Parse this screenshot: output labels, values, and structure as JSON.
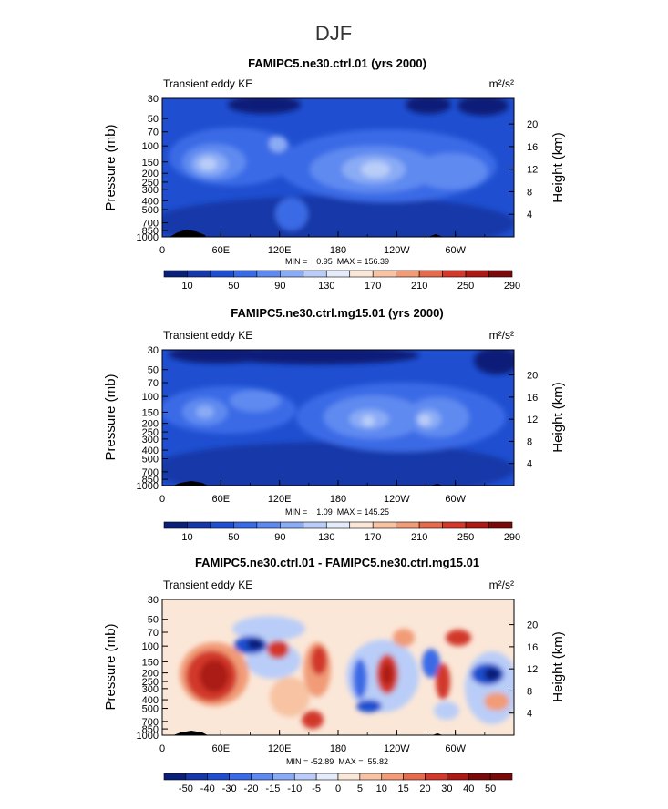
{
  "page_title": "DJF",
  "colors": {
    "ke_scale": [
      "#0a1f78",
      "#1637a8",
      "#1f4fd0",
      "#3a6be6",
      "#5e8af0",
      "#8aabf5",
      "#b9cdf8",
      "#e4ecfb",
      "#fbe7d8",
      "#f7c3a3",
      "#f19b77",
      "#e66a4c",
      "#d2392b",
      "#ab1a16",
      "#7a0a0a"
    ],
    "diff_scale": [
      "#0a1f78",
      "#1637a8",
      "#1f4fd0",
      "#3a6be6",
      "#5e8af0",
      "#8aabf5",
      "#b9cdf8",
      "#e4ecfb",
      "#fbe7d8",
      "#f7c3a3",
      "#f19b77",
      "#e66a4c",
      "#d2392b",
      "#ab1a16",
      "#7a0a0a"
    ],
    "topography": "#000000"
  },
  "chart_data": [
    {
      "type": "heatmap",
      "title": "FAMIPC5.ne30.ctrl.01 (yrs 2000)",
      "left_label": "Transient eddy KE",
      "units_text": "m²/s²",
      "ylabel": "Pressure (mb)",
      "ylabel_right": "Height (km)",
      "x_ticks": [
        "0",
        "60E",
        "120E",
        "180",
        "120W",
        "60W"
      ],
      "x_tick_lon": [
        0,
        60,
        120,
        180,
        240,
        300
      ],
      "xlim": [
        0,
        360
      ],
      "pressure_ticks": [
        30,
        50,
        70,
        100,
        150,
        200,
        250,
        300,
        400,
        500,
        700,
        850,
        1000
      ],
      "ylim_pressure": [
        30,
        1000
      ],
      "height_ticks_km": [
        4,
        8,
        12,
        16,
        20
      ],
      "min_max_text": "MIN =    0.95  MAX = 156.39",
      "colorbar_labels": [
        "10",
        "50",
        "90",
        "130",
        "170",
        "210",
        "250",
        "290"
      ],
      "colorbar_levels": [
        10,
        30,
        50,
        70,
        90,
        110,
        130,
        150,
        170,
        190,
        210,
        230,
        250,
        270,
        290
      ]
    },
    {
      "type": "heatmap",
      "title": "FAMIPC5.ne30.ctrl.mg15.01 (yrs 2000)",
      "left_label": "Transient eddy KE",
      "units_text": "m²/s²",
      "ylabel": "Pressure (mb)",
      "ylabel_right": "Height (km)",
      "x_ticks": [
        "0",
        "60E",
        "120E",
        "180",
        "120W",
        "60W"
      ],
      "x_tick_lon": [
        0,
        60,
        120,
        180,
        240,
        300
      ],
      "xlim": [
        0,
        360
      ],
      "pressure_ticks": [
        30,
        50,
        70,
        100,
        150,
        200,
        250,
        300,
        400,
        500,
        700,
        850,
        1000
      ],
      "ylim_pressure": [
        30,
        1000
      ],
      "height_ticks_km": [
        4,
        8,
        12,
        16,
        20
      ],
      "min_max_text": "MIN =    1.09  MAX = 145.25",
      "colorbar_labels": [
        "10",
        "50",
        "90",
        "130",
        "170",
        "210",
        "250",
        "290"
      ],
      "colorbar_levels": [
        10,
        30,
        50,
        70,
        90,
        110,
        130,
        150,
        170,
        190,
        210,
        230,
        250,
        270,
        290
      ]
    },
    {
      "type": "heatmap",
      "title": "FAMIPC5.ne30.ctrl.01 - FAMIPC5.ne30.ctrl.mg15.01",
      "left_label": "Transient eddy KE",
      "units_text": "m²/s²",
      "ylabel": "Pressure (mb)",
      "ylabel_right": "Height (km)",
      "x_ticks": [
        "0",
        "60E",
        "120E",
        "180",
        "120W",
        "60W"
      ],
      "x_tick_lon": [
        0,
        60,
        120,
        180,
        240,
        300
      ],
      "xlim": [
        0,
        360
      ],
      "pressure_ticks": [
        30,
        50,
        70,
        100,
        150,
        200,
        250,
        300,
        400,
        500,
        700,
        850,
        1000
      ],
      "ylim_pressure": [
        30,
        1000
      ],
      "height_ticks_km": [
        4,
        8,
        12,
        16,
        20
      ],
      "min_max_text": "MIN = -52.89  MAX =  55.82",
      "colorbar_labels": [
        "-50",
        "-40",
        "-30",
        "-20",
        "-15",
        "-10",
        "-5",
        "0",
        "5",
        "10",
        "15",
        "20",
        "30",
        "40",
        "50"
      ],
      "colorbar_levels": [
        -50,
        -40,
        -30,
        -20,
        -15,
        -10,
        -5,
        0,
        5,
        10,
        15,
        20,
        30,
        40,
        50
      ]
    }
  ]
}
